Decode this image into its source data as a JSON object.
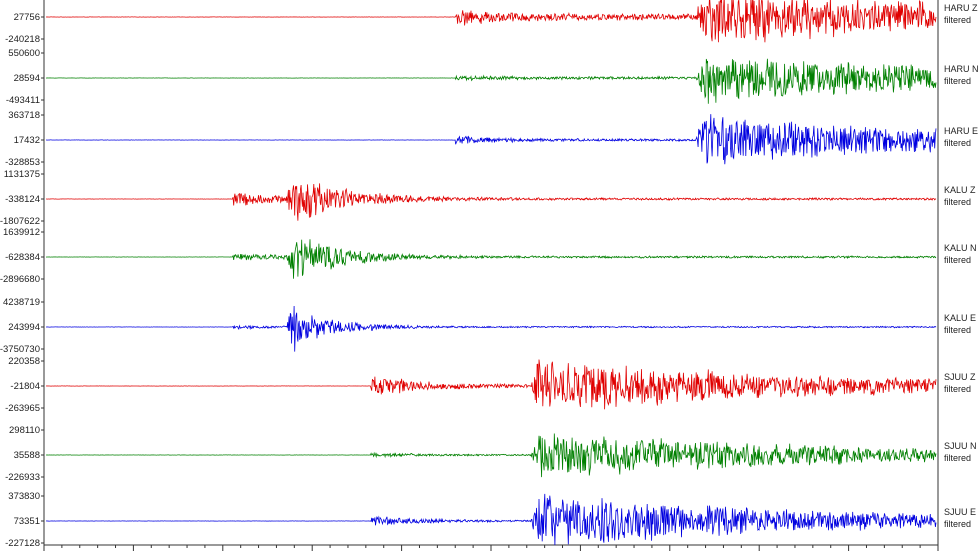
{
  "colors": {
    "Z": "#e00000",
    "N": "#008000",
    "E": "#0000e0"
  },
  "filter_label": "filtered",
  "chart_data": {
    "type": "line",
    "title": "",
    "xlabel": "",
    "ylabel": "",
    "grid": false,
    "legend": "none",
    "series": [
      {
        "name": "HARU Z",
        "station": "HARU",
        "component": "Z",
        "color": "#e00000",
        "amp_top": "",
        "amp_mid": "27756",
        "amp_bot": "-240218",
        "p_arrival": 0.46,
        "s_arrival": 0.73,
        "noise": 0.1,
        "p_amp": 0.4,
        "s_amp": 0.85,
        "decay": 0.35
      },
      {
        "name": "HARU N",
        "station": "HARU",
        "component": "N",
        "color": "#008000",
        "amp_top": "550600",
        "amp_mid": "28594",
        "amp_bot": "-493411",
        "p_arrival": 0.46,
        "s_arrival": 0.73,
        "noise": 0.04,
        "p_amp": 0.1,
        "s_amp": 0.85,
        "decay": 0.3
      },
      {
        "name": "HARU E",
        "station": "HARU",
        "component": "E",
        "color": "#0000e0",
        "amp_top": "363718",
        "amp_mid": "17432",
        "amp_bot": "-328853",
        "p_arrival": 0.46,
        "s_arrival": 0.73,
        "noise": 0.03,
        "p_amp": 0.25,
        "s_amp": 0.85,
        "decay": 0.3
      },
      {
        "name": "KALU Z",
        "station": "KALU",
        "component": "Z",
        "color": "#e00000",
        "amp_top": "1131375",
        "amp_mid": "-338124",
        "amp_bot": "-1807622",
        "p_arrival": 0.21,
        "s_arrival": 0.27,
        "noise": 0.03,
        "p_amp": 0.45,
        "s_amp": 0.85,
        "decay": 0.06
      },
      {
        "name": "KALU N",
        "station": "KALU",
        "component": "N",
        "color": "#008000",
        "amp_top": "1639912",
        "amp_mid": "-628384",
        "amp_bot": "-2896680",
        "p_arrival": 0.21,
        "s_arrival": 0.27,
        "noise": 0.03,
        "p_amp": 0.2,
        "s_amp": 0.95,
        "decay": 0.05
      },
      {
        "name": "KALU E",
        "station": "KALU",
        "component": "E",
        "color": "#0000e0",
        "amp_top": "4238719",
        "amp_mid": "243994",
        "amp_bot": "-3750730",
        "p_arrival": 0.21,
        "s_arrival": 0.27,
        "noise": 0.02,
        "p_amp": 0.08,
        "s_amp": 0.95,
        "decay": 0.04
      },
      {
        "name": "SJUU Z",
        "station": "SJUU",
        "component": "Z",
        "color": "#e00000",
        "amp_top": "220358",
        "amp_mid": "-21804",
        "amp_bot": "-263965",
        "p_arrival": 0.365,
        "s_arrival": 0.545,
        "noise": 0.04,
        "p_amp": 0.75,
        "s_amp": 0.9,
        "decay": 0.3
      },
      {
        "name": "SJUU N",
        "station": "SJUU",
        "component": "N",
        "color": "#008000",
        "amp_top": "298110",
        "amp_mid": "35588",
        "amp_bot": "-226933",
        "p_arrival": 0.365,
        "s_arrival": 0.545,
        "noise": 0.02,
        "p_amp": 0.12,
        "s_amp": 0.85,
        "decay": 0.32
      },
      {
        "name": "SJUU E",
        "station": "SJUU",
        "component": "E",
        "color": "#0000e0",
        "amp_top": "373830",
        "amp_mid": "73351",
        "amp_bot": "-227128",
        "p_arrival": 0.365,
        "s_arrival": 0.545,
        "noise": 0.02,
        "p_amp": 0.35,
        "s_amp": 0.9,
        "decay": 0.32
      }
    ]
  }
}
